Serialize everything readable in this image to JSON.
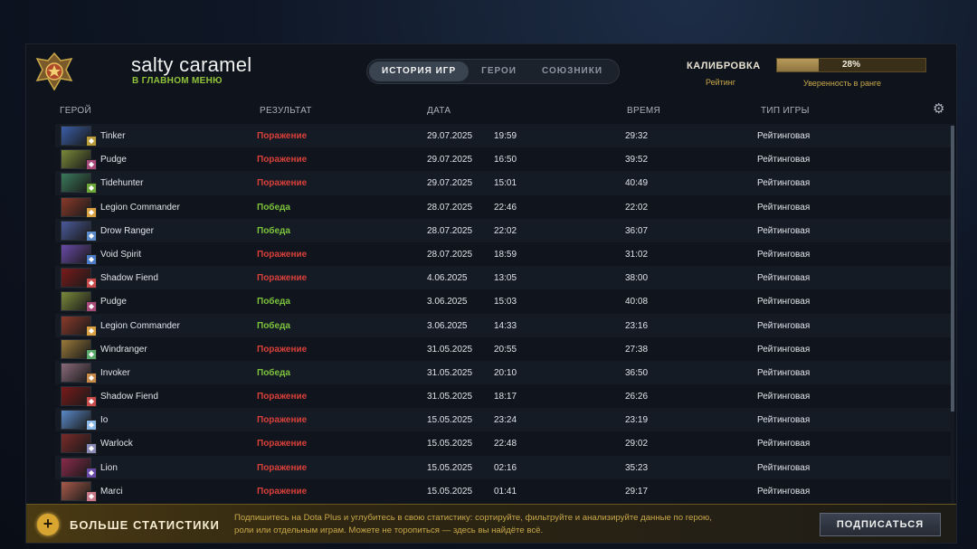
{
  "header": {
    "player_name": "salty caramel",
    "player_status": "В ГЛАВНОМ МЕНЮ",
    "tabs": [
      {
        "label": "ИСТОРИЯ ИГР",
        "active": true
      },
      {
        "label": "ГЕРОИ",
        "active": false
      },
      {
        "label": "СОЮЗНИКИ",
        "active": false
      }
    ],
    "calibration_label": "КАЛИБРОВКА",
    "rating_label": "Рейтинг",
    "confidence_text": "28%",
    "confidence_value": 0.28,
    "confidence_label": "Уверенность в ранге"
  },
  "columns": {
    "hero": "ГЕРОЙ",
    "result": "РЕЗУЛЬТАТ",
    "date": "ДАТА",
    "duration": "ВРЕМЯ",
    "game_type": "ТИП ИГРЫ",
    "settings_icon": "gear-icon"
  },
  "matches": [
    {
      "hero": "Tinker",
      "result": "Поражение",
      "win": false,
      "date": "29.07.2025",
      "time": "19:59",
      "duration": "29:32",
      "type": "Рейтинговая",
      "color": "#3a5ea8",
      "badge": "#b89c3a"
    },
    {
      "hero": "Pudge",
      "result": "Поражение",
      "win": false,
      "date": "29.07.2025",
      "time": "16:50",
      "duration": "39:52",
      "type": "Рейтинговая",
      "color": "#7a8a3a",
      "badge": "#a84a7a"
    },
    {
      "hero": "Tidehunter",
      "result": "Поражение",
      "win": false,
      "date": "29.07.2025",
      "time": "15:01",
      "duration": "40:49",
      "type": "Рейтинговая",
      "color": "#3a7a5a",
      "badge": "#6aa83a"
    },
    {
      "hero": "Legion Commander",
      "result": "Победа",
      "win": true,
      "date": "28.07.2025",
      "time": "22:46",
      "duration": "22:02",
      "type": "Рейтинговая",
      "color": "#8a3a2a",
      "badge": "#d8a040"
    },
    {
      "hero": "Drow Ranger",
      "result": "Победа",
      "win": true,
      "date": "28.07.2025",
      "time": "22:02",
      "duration": "36:07",
      "type": "Рейтинговая",
      "color": "#4a5a9a",
      "badge": "#5a8ac8"
    },
    {
      "hero": "Void Spirit",
      "result": "Поражение",
      "win": false,
      "date": "28.07.2025",
      "time": "18:59",
      "duration": "31:02",
      "type": "Рейтинговая",
      "color": "#6a4aa8",
      "badge": "#4a7ac8"
    },
    {
      "hero": "Shadow Fiend",
      "result": "Поражение",
      "win": false,
      "date": "4.06.2025",
      "time": "13:05",
      "duration": "38:00",
      "type": "Рейтинговая",
      "color": "#7a1a1a",
      "badge": "#c84a4a"
    },
    {
      "hero": "Pudge",
      "result": "Победа",
      "win": true,
      "date": "3.06.2025",
      "time": "15:03",
      "duration": "40:08",
      "type": "Рейтинговая",
      "color": "#7a8a3a",
      "badge": "#a84a7a"
    },
    {
      "hero": "Legion Commander",
      "result": "Победа",
      "win": true,
      "date": "3.06.2025",
      "time": "14:33",
      "duration": "23:16",
      "type": "Рейтинговая",
      "color": "#8a3a2a",
      "badge": "#d8a040"
    },
    {
      "hero": "Windranger",
      "result": "Поражение",
      "win": false,
      "date": "31.05.2025",
      "time": "20:55",
      "duration": "27:38",
      "type": "Рейтинговая",
      "color": "#9a7a3a",
      "badge": "#5aa86a"
    },
    {
      "hero": "Invoker",
      "result": "Победа",
      "win": true,
      "date": "31.05.2025",
      "time": "20:10",
      "duration": "36:50",
      "type": "Рейтинговая",
      "color": "#8a6a7a",
      "badge": "#c88a4a"
    },
    {
      "hero": "Shadow Fiend",
      "result": "Поражение",
      "win": false,
      "date": "31.05.2025",
      "time": "18:17",
      "duration": "26:26",
      "type": "Рейтинговая",
      "color": "#7a1a1a",
      "badge": "#c84a4a"
    },
    {
      "hero": "Io",
      "result": "Поражение",
      "win": false,
      "date": "15.05.2025",
      "time": "23:24",
      "duration": "23:19",
      "type": "Рейтинговая",
      "color": "#5a8ac8",
      "badge": "#8ab8e8"
    },
    {
      "hero": "Warlock",
      "result": "Поражение",
      "win": false,
      "date": "15.05.2025",
      "time": "22:48",
      "duration": "29:02",
      "type": "Рейтинговая",
      "color": "#7a2a2a",
      "badge": "#8a8ab8"
    },
    {
      "hero": "Lion",
      "result": "Поражение",
      "win": false,
      "date": "15.05.2025",
      "time": "02:16",
      "duration": "35:23",
      "type": "Рейтинговая",
      "color": "#8a2a4a",
      "badge": "#6a4aa8"
    },
    {
      "hero": "Marci",
      "result": "Поражение",
      "win": false,
      "date": "15.05.2025",
      "time": "01:41",
      "duration": "29:17",
      "type": "Рейтинговая",
      "color": "#a85a4a",
      "badge": "#c87a8a"
    }
  ],
  "footer": {
    "title": "БОЛЬШЕ СТАТИСТИКИ",
    "promo_line1": "Подпишитесь на Dota Plus и углубитесь в свою статистику: сортируйте, фильтруйте и анализируйте данные по герою,",
    "promo_line2": "роли или отдельным играм. Можете не торопиться — здесь вы найдёте всё.",
    "subscribe_label": "ПОДПИСАТЬСЯ",
    "icon": "plus-icon"
  },
  "colors": {
    "loss": "#d8403a",
    "win": "#7cc23c",
    "accent_gold": "#c9a84a"
  }
}
